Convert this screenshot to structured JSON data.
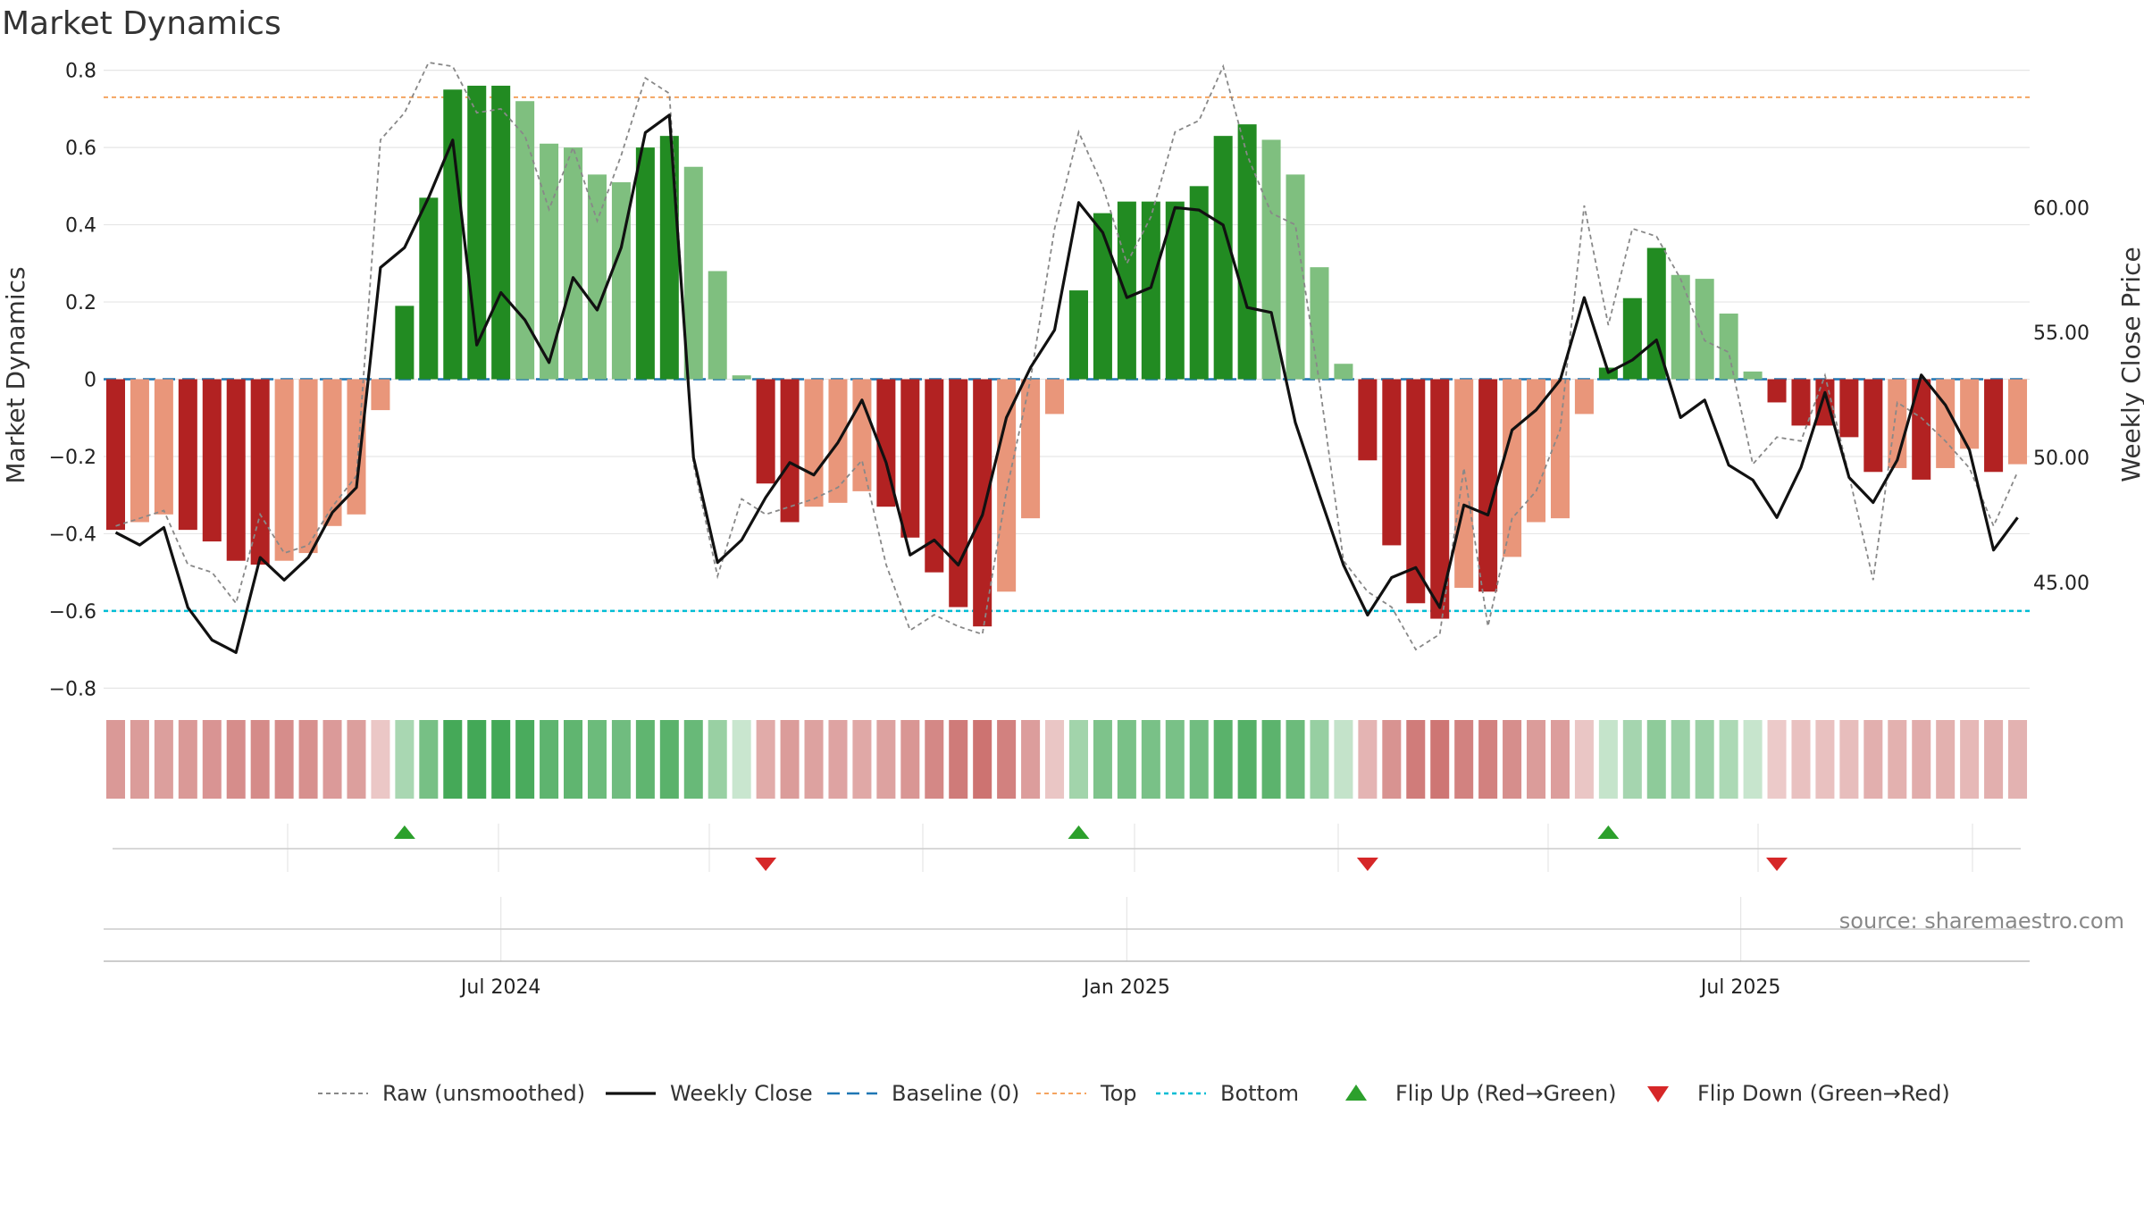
{
  "chart_data": {
    "type": "bar",
    "title": "Market Dynamics",
    "ylabel": "Market Dynamics",
    "y2label": "Weekly Close Price",
    "ylim": [
      -0.85,
      0.82
    ],
    "y2lim": [
      40.0,
      65.8
    ],
    "yticks": [
      -0.8,
      -0.6,
      -0.4,
      -0.2,
      0,
      0.2,
      0.4,
      0.6,
      0.8
    ],
    "ytick_labels": [
      "−0.8",
      "−0.6",
      "−0.4",
      "−0.2",
      "0",
      "0.2",
      "0.4",
      "0.6",
      "0.8"
    ],
    "y2ticks": [
      45,
      50,
      55,
      60
    ],
    "y2tick_labels": [
      "45.00",
      "50.00",
      "55.00",
      "60.00"
    ],
    "xtick_labels": [
      "Jul 2024",
      "Jan 2025",
      "Jul 2025"
    ],
    "xtick_positions": [
      16.5,
      42.5,
      68.0
    ],
    "top_line": 0.73,
    "bottom_line": -0.6,
    "baseline": 0,
    "grid": true,
    "legend_position": "bottom-center",
    "values": [
      -0.39,
      -0.37,
      -0.35,
      -0.39,
      -0.42,
      -0.47,
      -0.48,
      -0.47,
      -0.45,
      -0.38,
      -0.35,
      -0.08,
      0.19,
      0.47,
      0.75,
      0.76,
      0.76,
      0.72,
      0.61,
      0.6,
      0.53,
      0.51,
      0.6,
      0.63,
      0.55,
      0.28,
      0.01,
      -0.27,
      -0.37,
      -0.33,
      -0.32,
      -0.29,
      -0.33,
      -0.41,
      -0.5,
      -0.59,
      -0.64,
      -0.55,
      -0.36,
      -0.09,
      0.23,
      0.43,
      0.46,
      0.46,
      0.46,
      0.5,
      0.63,
      0.66,
      0.62,
      0.53,
      0.29,
      0.04,
      -0.21,
      -0.43,
      -0.58,
      -0.62,
      -0.54,
      -0.55,
      -0.46,
      -0.37,
      -0.36,
      -0.09,
      0.03,
      0.21,
      0.34,
      0.27,
      0.26,
      0.17,
      0.02,
      -0.06,
      -0.12,
      -0.12,
      -0.15,
      -0.24,
      -0.23,
      -0.26,
      -0.23,
      -0.18,
      -0.24,
      -0.22
    ],
    "close": [
      47.0,
      46.5,
      47.2,
      44.0,
      42.7,
      42.2,
      46.0,
      45.1,
      46.0,
      47.8,
      48.8,
      57.6,
      58.4,
      60.4,
      62.7,
      54.5,
      56.6,
      55.5,
      53.8,
      57.2,
      55.9,
      58.4,
      63.0,
      63.7,
      50.0,
      45.8,
      46.7,
      48.4,
      49.8,
      49.3,
      50.6,
      52.3,
      49.8,
      46.1,
      46.7,
      45.7,
      47.7,
      51.6,
      53.6,
      55.1,
      60.2,
      59.0,
      56.4,
      56.8,
      60.0,
      59.9,
      59.3,
      56.0,
      55.8,
      51.4,
      48.5,
      45.7,
      43.7,
      45.2,
      45.6,
      44.0,
      48.1,
      47.7,
      51.1,
      51.9,
      53.1,
      56.4,
      53.4,
      53.9,
      54.7,
      51.6,
      52.3,
      49.7,
      49.1,
      47.6,
      49.6,
      52.6,
      49.2,
      48.2,
      49.9,
      53.3,
      52.1,
      50.3,
      46.3,
      47.6
    ],
    "raw": [
      -0.38,
      -0.36,
      -0.34,
      -0.48,
      -0.5,
      -0.58,
      -0.35,
      -0.45,
      -0.43,
      -0.33,
      -0.25,
      0.62,
      0.69,
      0.82,
      0.81,
      0.69,
      0.7,
      0.63,
      0.44,
      0.6,
      0.41,
      0.58,
      0.78,
      0.74,
      -0.22,
      -0.51,
      -0.31,
      -0.35,
      -0.33,
      -0.31,
      -0.28,
      -0.21,
      -0.48,
      -0.65,
      -0.61,
      -0.64,
      -0.66,
      -0.29,
      0.0,
      0.39,
      0.64,
      0.5,
      0.3,
      0.42,
      0.64,
      0.67,
      0.81,
      0.58,
      0.43,
      0.4,
      -0.01,
      -0.47,
      -0.55,
      -0.59,
      -0.7,
      -0.66,
      -0.23,
      -0.64,
      -0.36,
      -0.29,
      -0.13,
      0.45,
      0.14,
      0.39,
      0.37,
      0.26,
      0.1,
      0.07,
      -0.22,
      -0.15,
      -0.16,
      0.01,
      -0.25,
      -0.52,
      -0.06,
      -0.1,
      -0.16,
      -0.23,
      -0.38,
      -0.24
    ],
    "flip_up_index": [
      12,
      40,
      62
    ],
    "flip_down_index": [
      27,
      52,
      69
    ],
    "legend": [
      "Raw (unsmoothed)",
      "Weekly Close",
      "Baseline (0)",
      "Top",
      "Bottom",
      "Flip Up (Red→Green)",
      "Flip Down (Green→Red)"
    ],
    "source": "source: sharemaestro.com",
    "colors": {
      "pos_strong": "#228b22",
      "pos_weak": "#7fbf7f",
      "neg_strong": "#b22222",
      "neg_weak": "#e9967a",
      "close": "#111111",
      "raw": "#888888",
      "baseline": "#1f77b4",
      "top": "#f4a460",
      "bottom": "#00bcd4",
      "flip_up": "#2ca02c",
      "flip_down": "#d62728",
      "grid": "#e6e6e6"
    }
  }
}
